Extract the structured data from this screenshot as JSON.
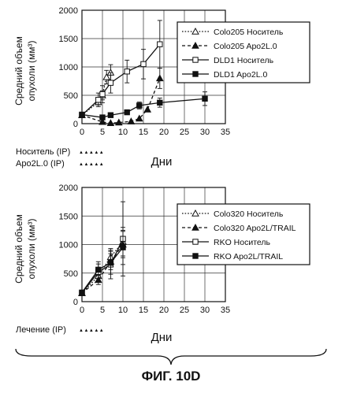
{
  "figure_label": "ФИГ. 10D",
  "chart_data": [
    {
      "type": "line",
      "ylabel": "Средний объем опухоли (мм³)",
      "ylabel_lines": [
        "Средний объем",
        "опухоли (мм³)"
      ],
      "xlabel": "Дни",
      "xlim": [
        0,
        35
      ],
      "ylim": [
        0,
        2000
      ],
      "xticks": [
        "0",
        "5",
        "10",
        "15",
        "20",
        "25",
        "30",
        "35"
      ],
      "yticks": [
        "0",
        "500",
        "1000",
        "1500",
        "2000"
      ],
      "grid": true,
      "legend_position": "top-right",
      "dosing": [
        {
          "label": "Носитель (IP)",
          "marks": "▲▲▲▲▲",
          "days": [
            2,
            3,
            4,
            5,
            6
          ]
        },
        {
          "label": "Apo2L.0 (IP)",
          "marks": "▲▲▲▲▲",
          "days": [
            2,
            3,
            4,
            5,
            6
          ]
        }
      ],
      "series": [
        {
          "name": "Colo205 Носитель",
          "marker": "triangle-open",
          "line": "dotted",
          "x": [
            0,
            4,
            5,
            6,
            7
          ],
          "y": [
            150,
            380,
            500,
            820,
            900
          ],
          "err": [
            30,
            50,
            80,
            120,
            140
          ]
        },
        {
          "name": "Colo205 Apo2L.0",
          "marker": "triangle-filled",
          "line": "dashed",
          "x": [
            0,
            5,
            7,
            9,
            12,
            14,
            16,
            19
          ],
          "y": [
            150,
            30,
            10,
            20,
            40,
            90,
            250,
            800
          ],
          "err": [
            0,
            0,
            0,
            0,
            0,
            0,
            0,
            180
          ]
        },
        {
          "name": "DLD1 Носитель",
          "marker": "square-open",
          "line": "solid",
          "x": [
            0,
            4,
            5,
            7,
            11,
            15,
            19
          ],
          "y": [
            150,
            420,
            520,
            720,
            920,
            1050,
            1400
          ],
          "err": [
            20,
            120,
            150,
            180,
            200,
            260,
            420
          ]
        },
        {
          "name": "DLD1 Apo2L.0",
          "marker": "square-filled",
          "line": "solid",
          "x": [
            0,
            5,
            7,
            11,
            14,
            19,
            30
          ],
          "y": [
            160,
            110,
            150,
            200,
            320,
            370,
            440
          ],
          "err": [
            20,
            20,
            30,
            40,
            60,
            80,
            120
          ]
        }
      ]
    },
    {
      "type": "line",
      "ylabel": "Средний объем опухоли (мм³)",
      "ylabel_lines": [
        "Средний объем",
        "опухоли (мм³)"
      ],
      "xlabel": "Дни",
      "xlim": [
        0,
        35
      ],
      "ylim": [
        0,
        2000
      ],
      "xticks": [
        "0",
        "5",
        "10",
        "15",
        "20",
        "25",
        "30",
        "35"
      ],
      "yticks": [
        "0",
        "500",
        "1000",
        "1500",
        "2000"
      ],
      "grid": true,
      "legend_position": "top-right",
      "dosing": [
        {
          "label": "Лечение (IP)",
          "marks": "▲▲▲▲▲",
          "days": [
            2,
            3,
            4,
            5,
            6
          ]
        }
      ],
      "series": [
        {
          "name": "Colo320 Носитель",
          "marker": "triangle-open",
          "line": "dotted",
          "x": [
            0,
            4,
            7,
            10
          ],
          "y": [
            150,
            450,
            780,
            1050
          ],
          "err": [
            20,
            90,
            150,
            250
          ]
        },
        {
          "name": "Colo320 Apo2L/TRAIL",
          "marker": "triangle-filled",
          "line": "dashed",
          "x": [
            0,
            4,
            7,
            10
          ],
          "y": [
            150,
            380,
            700,
            1000
          ],
          "err": [
            20,
            80,
            140,
            230
          ]
        },
        {
          "name": "RKO Носитель",
          "marker": "square-open",
          "line": "solid",
          "x": [
            0,
            4,
            7,
            10
          ],
          "y": [
            150,
            520,
            650,
            1100
          ],
          "err": [
            20,
            180,
            250,
            650
          ]
        },
        {
          "name": "RKO Apo2L/TRAIL",
          "marker": "square-filled",
          "line": "solid",
          "x": [
            0,
            4,
            7,
            10
          ],
          "y": [
            160,
            560,
            680,
            950
          ],
          "err": [
            20,
            100,
            200,
            300
          ]
        }
      ]
    }
  ]
}
